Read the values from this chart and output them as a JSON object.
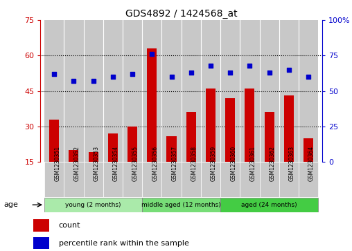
{
  "title": "GDS4892 / 1424568_at",
  "samples": [
    "GSM1230351",
    "GSM1230352",
    "GSM1230353",
    "GSM1230354",
    "GSM1230355",
    "GSM1230356",
    "GSM1230357",
    "GSM1230358",
    "GSM1230359",
    "GSM1230360",
    "GSM1230361",
    "GSM1230362",
    "GSM1230363",
    "GSM1230364"
  ],
  "counts": [
    33,
    20,
    19,
    27,
    30,
    63,
    26,
    36,
    46,
    42,
    46,
    36,
    43,
    25
  ],
  "percentiles": [
    62,
    57,
    57,
    60,
    62,
    76,
    60,
    63,
    68,
    63,
    68,
    63,
    65,
    60
  ],
  "groups": [
    {
      "label": "young (2 months)",
      "start": 0,
      "end": 4,
      "color": "#AAEAAA"
    },
    {
      "label": "middle aged (12 months)",
      "start": 5,
      "end": 8,
      "color": "#77DD77"
    },
    {
      "label": "aged (24 months)",
      "start": 9,
      "end": 13,
      "color": "#44CC44"
    }
  ],
  "bar_color": "#CC0000",
  "dot_color": "#0000CC",
  "left_ylim": [
    15,
    75
  ],
  "left_yticks": [
    15,
    30,
    45,
    60,
    75
  ],
  "right_ylim": [
    0,
    100
  ],
  "right_yticks": [
    0,
    25,
    50,
    75,
    100
  ],
  "right_yticklabels": [
    "0",
    "25",
    "50",
    "75",
    "100%"
  ],
  "hline_values": [
    30,
    45,
    60
  ],
  "xtick_bg_color": "#C8C8C8",
  "xtick_sep_color": "#FFFFFF"
}
